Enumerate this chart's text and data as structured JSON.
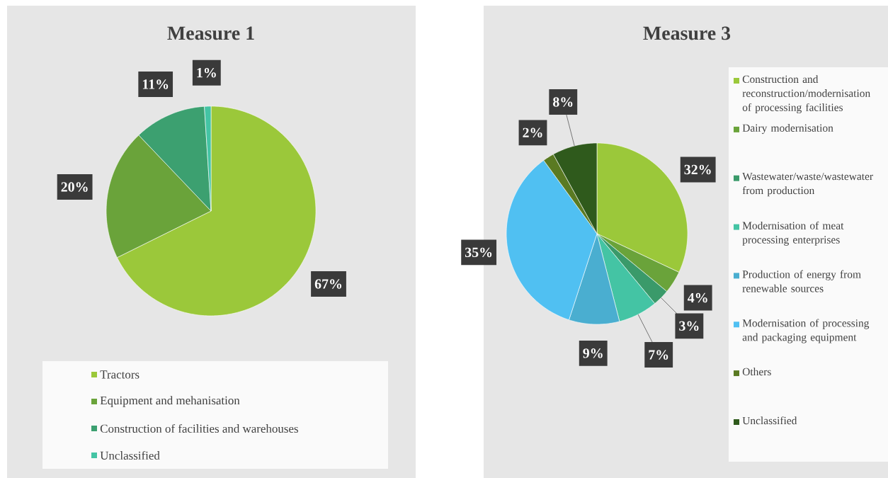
{
  "chart_data": [
    {
      "type": "pie",
      "title": "Measure 1",
      "categories": [
        "Tractors",
        "Equipment and mehanisation",
        "Construction of facilities and warehouses",
        "Unclassified"
      ],
      "values": [
        67,
        20,
        11,
        1
      ],
      "value_labels": [
        "67%",
        "20%",
        "11%",
        "1%"
      ],
      "colors": [
        "#9bc83a",
        "#6aa33a",
        "#3ca070",
        "#44c4a4"
      ],
      "legend": "bottom"
    },
    {
      "type": "pie",
      "title": "Measure 3",
      "categories": [
        "Construction and reconstruction/modernisation of processing facilities",
        "Dairy modernisation",
        "Wastewater/waste/wastewater from production",
        "Modernisation of meat processing enterprises",
        "Production of energy from renewable sources",
        "Modernisation of processing and packaging equipment",
        "Others",
        "Unclassified"
      ],
      "values": [
        32,
        4,
        3,
        7,
        9,
        35,
        2,
        8
      ],
      "value_labels": [
        "32%",
        "4%",
        "3%",
        "7%",
        "9%",
        "35%",
        "2%",
        "8%"
      ],
      "colors": [
        "#9bc83a",
        "#6aa33a",
        "#3a9a6a",
        "#44c4a4",
        "#4aaed0",
        "#50c0f2",
        "#5a7a22",
        "#2f5a1c"
      ],
      "legend": "right"
    }
  ]
}
